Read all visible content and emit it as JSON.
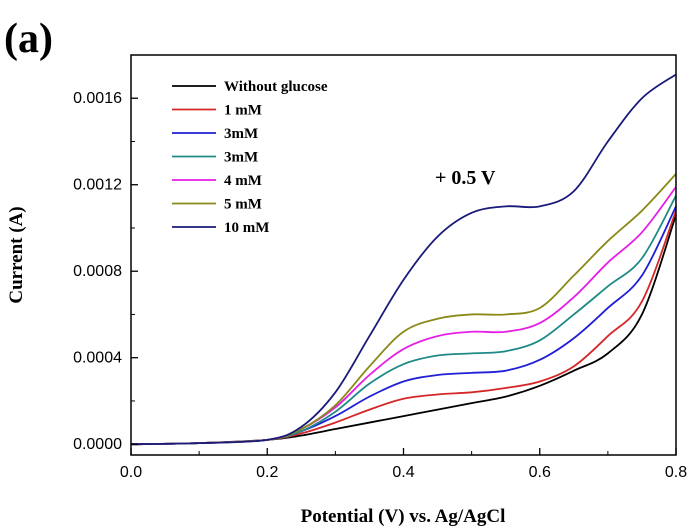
{
  "panel_label": "(a)",
  "chart_data": {
    "type": "line",
    "xlabel": "Potential (V) vs. Ag/AgCl",
    "ylabel": "Current (A)",
    "xlim": [
      0.0,
      0.8
    ],
    "ylim": [
      -5e-05,
      0.0018
    ],
    "x_ticks": [
      0.0,
      0.2,
      0.4,
      0.6,
      0.8
    ],
    "x_tick_labels": [
      "0.0",
      "0.2",
      "0.4",
      "0.6",
      "0.8"
    ],
    "y_ticks": [
      0.0,
      0.0004,
      0.0008,
      0.0012,
      0.0016
    ],
    "y_tick_labels": [
      "0.0000",
      "0.0004",
      "0.0008",
      "0.0012",
      "0.0016"
    ],
    "legend_position": "top-left",
    "annotation": "+ 0.5 V",
    "x": [
      0.0,
      0.1,
      0.2,
      0.25,
      0.3,
      0.35,
      0.4,
      0.45,
      0.5,
      0.55,
      0.6,
      0.65,
      0.7,
      0.75,
      0.8
    ],
    "series": [
      {
        "name": "Without glucose",
        "color": "#000000",
        "values": [
          0.0,
          5e-06,
          2e-05,
          4e-05,
          7e-05,
          0.0001,
          0.00013,
          0.00016,
          0.00019,
          0.00022,
          0.00027,
          0.00034,
          0.00042,
          0.0006,
          0.00106
        ]
      },
      {
        "name": "1 mM",
        "color": "#d62728",
        "values": [
          0.0,
          5e-06,
          2e-05,
          5e-05,
          0.0001,
          0.00016,
          0.00021,
          0.00023,
          0.00024,
          0.00026,
          0.00029,
          0.00036,
          0.0005,
          0.00066,
          0.00108
        ]
      },
      {
        "name": "3mM",
        "color": "#1f1fd6",
        "values": [
          0.0,
          5e-06,
          2e-05,
          6e-05,
          0.00013,
          0.00022,
          0.00029,
          0.00032,
          0.00033,
          0.00034,
          0.00039,
          0.00049,
          0.00063,
          0.00078,
          0.0011
        ]
      },
      {
        "name": "3mM",
        "color": "#1f8a87",
        "values": [
          0.0,
          5e-06,
          2e-05,
          6e-05,
          0.00015,
          0.00028,
          0.00037,
          0.00041,
          0.00042,
          0.00043,
          0.00048,
          0.0006,
          0.00073,
          0.00086,
          0.00115
        ]
      },
      {
        "name": "4 mM",
        "color": "#e61ee6",
        "values": [
          0.0,
          5e-06,
          2e-05,
          7e-05,
          0.00017,
          0.00032,
          0.00044,
          0.0005,
          0.00052,
          0.00052,
          0.00056,
          0.00068,
          0.00084,
          0.00098,
          0.00119
        ]
      },
      {
        "name": "5 mM",
        "color": "#8a8a1a",
        "values": [
          0.0,
          5e-06,
          2e-05,
          7e-05,
          0.00018,
          0.00036,
          0.00052,
          0.00058,
          0.0006,
          0.0006,
          0.00063,
          0.00078,
          0.00094,
          0.00108,
          0.00125
        ]
      },
      {
        "name": "10 mM",
        "color": "#1a1a7a",
        "values": [
          0.0,
          5e-06,
          2e-05,
          8e-05,
          0.00024,
          0.0005,
          0.00076,
          0.00096,
          0.00107,
          0.0011,
          0.0011,
          0.00117,
          0.0014,
          0.0016,
          0.00171
        ]
      }
    ]
  }
}
